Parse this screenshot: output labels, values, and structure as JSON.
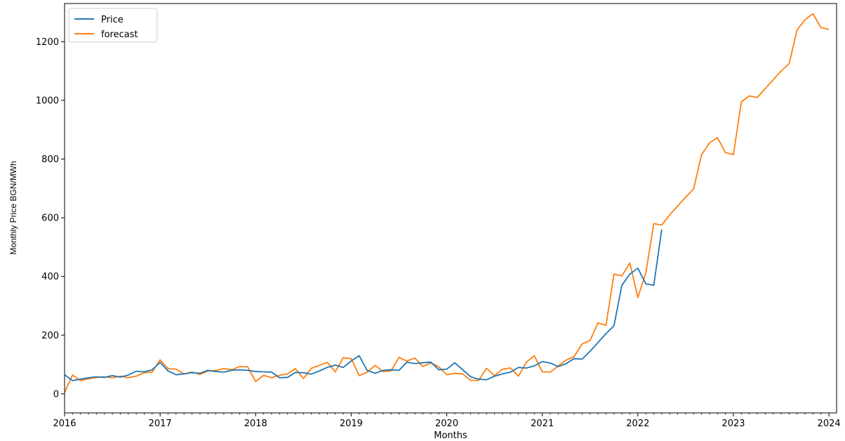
{
  "chart_data": {
    "type": "line",
    "title": "",
    "xlabel": "Months",
    "ylabel": "Monthly Price BGN/MWh",
    "xlim": [
      2016.0,
      2024.08
    ],
    "ylim": [
      -65,
      1330
    ],
    "x_ticks": [
      2016,
      2017,
      2018,
      2019,
      2020,
      2021,
      2022,
      2023,
      2024
    ],
    "x_tick_labels": [
      "2016",
      "2017",
      "2018",
      "2019",
      "2020",
      "2021",
      "2022",
      "2023",
      "2024"
    ],
    "y_ticks": [
      0,
      200,
      400,
      600,
      800,
      1000,
      1200
    ],
    "y_tick_labels": [
      "0",
      "200",
      "400",
      "600",
      "800",
      "1000",
      "1200"
    ],
    "grid": false,
    "legend_position": "top-left",
    "series": [
      {
        "name": "Price",
        "color": "#1f77b4",
        "start_year": 2016.0,
        "step_months": 1,
        "values": [
          65,
          45,
          50,
          55,
          58,
          56,
          62,
          57,
          64,
          77,
          75,
          82,
          107,
          78,
          65,
          68,
          72,
          70,
          80,
          76,
          74,
          80,
          82,
          80,
          76,
          75,
          74,
          55,
          56,
          73,
          72,
          67,
          78,
          90,
          98,
          90,
          112,
          130,
          80,
          70,
          80,
          82,
          80,
          108,
          103,
          106,
          108,
          82,
          84,
          106,
          82,
          58,
          50,
          48,
          60,
          68,
          74,
          90,
          88,
          95,
          110,
          105,
          93,
          103,
          120,
          118,
          145,
          175,
          205,
          232,
          370,
          408,
          428,
          375,
          370,
          560
        ]
      },
      {
        "name": "forecast",
        "color": "#ff7f0e",
        "start_year": 2016.0,
        "step_months": 1,
        "values": [
          5,
          64,
          45,
          51,
          56,
          58,
          55,
          60,
          55,
          60,
          72,
          74,
          116,
          86,
          84,
          68,
          74,
          66,
          78,
          80,
          86,
          82,
          93,
          92,
          42,
          63,
          55,
          63,
          68,
          86,
          52,
          87,
          97,
          107,
          75,
          123,
          120,
          62,
          74,
          97,
          76,
          78,
          124,
          112,
          122,
          93,
          106,
          92,
          65,
          70,
          68,
          46,
          46,
          87,
          62,
          84,
          88,
          60,
          108,
          130,
          75,
          74,
          95,
          115,
          127,
          170,
          182,
          242,
          233,
          408,
          402,
          446,
          328,
          412,
          580,
          575,
          610,
          640,
          670,
          698,
          815,
          855,
          873,
          822,
          815,
          995,
          1015,
          1010,
          1040,
          1070,
          1100,
          1125,
          1240,
          1275,
          1295,
          1248,
          1242
        ]
      }
    ]
  }
}
